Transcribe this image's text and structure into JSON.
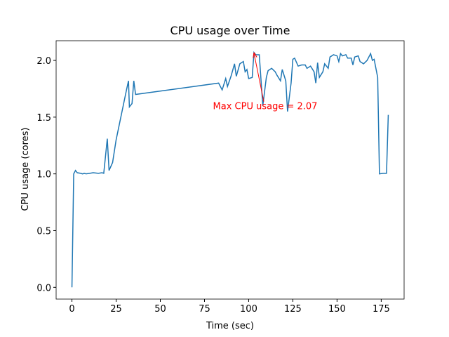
{
  "chart_data": {
    "type": "line",
    "title": "CPU usage over Time",
    "x_label": "Time (sec)",
    "y_label": "CPU usage (cores)",
    "annotation": "Max CPU usage = 2.07",
    "color": "#1f77b4",
    "annotation_color": "#ff0000",
    "x": [
      0,
      1,
      2,
      3,
      5,
      6,
      7,
      8,
      10,
      12,
      15,
      17,
      18,
      20,
      21,
      23,
      25,
      27,
      29,
      31,
      32,
      32.5,
      34,
      35,
      36,
      83,
      85,
      87,
      88,
      90,
      92,
      93,
      95,
      97,
      98,
      99,
      100,
      102,
      103,
      104,
      106,
      108,
      110,
      111,
      113,
      115,
      116,
      118,
      119,
      121,
      122,
      124,
      125,
      126,
      128,
      130,
      132,
      133,
      135,
      137,
      138,
      139,
      140,
      142,
      143,
      145,
      146,
      148,
      150,
      151,
      152,
      153,
      155,
      156,
      158,
      159,
      160,
      162,
      163,
      165,
      167,
      169,
      170,
      171,
      173,
      174,
      176,
      178,
      179
    ],
    "values": [
      0.0,
      1.0,
      1.03,
      1.01,
      1.005,
      1.0,
      1.005,
      1.0,
      1.005,
      1.01,
      1.005,
      1.01,
      1.005,
      1.31,
      1.03,
      1.1,
      1.3,
      1.45,
      1.6,
      1.75,
      1.82,
      1.59,
      1.62,
      1.82,
      1.7,
      1.8,
      1.74,
      1.84,
      1.77,
      1.86,
      1.97,
      1.86,
      1.97,
      1.99,
      1.9,
      1.92,
      1.84,
      1.85,
      2.07,
      2.05,
      2.05,
      1.6,
      1.85,
      1.91,
      1.93,
      1.9,
      1.87,
      1.82,
      1.92,
      1.82,
      1.55,
      1.8,
      2.01,
      2.02,
      1.95,
      1.96,
      1.96,
      1.93,
      1.95,
      1.9,
      1.8,
      1.98,
      1.85,
      1.9,
      1.97,
      1.93,
      2.03,
      2.05,
      2.04,
      1.99,
      2.06,
      2.04,
      2.05,
      2.02,
      2.02,
      1.96,
      2.03,
      2.04,
      1.99,
      1.97,
      2.0,
      2.06,
      2.0,
      2.01,
      1.85,
      1.0,
      1.005,
      1.005,
      1.52
    ],
    "xlim": [
      -8.95,
      187.95
    ],
    "ylim": [
      -0.1035,
      2.1735
    ],
    "xticks": [
      0,
      25,
      50,
      75,
      100,
      125,
      150,
      175
    ],
    "yticks": [
      {
        "value": 0,
        "label": "0.0"
      },
      {
        "value": 0.5,
        "label": "0.5"
      },
      {
        "value": 1,
        "label": "1.0"
      },
      {
        "value": 1.5,
        "label": "1.5"
      },
      {
        "value": 2,
        "label": "2.0"
      }
    ]
  }
}
